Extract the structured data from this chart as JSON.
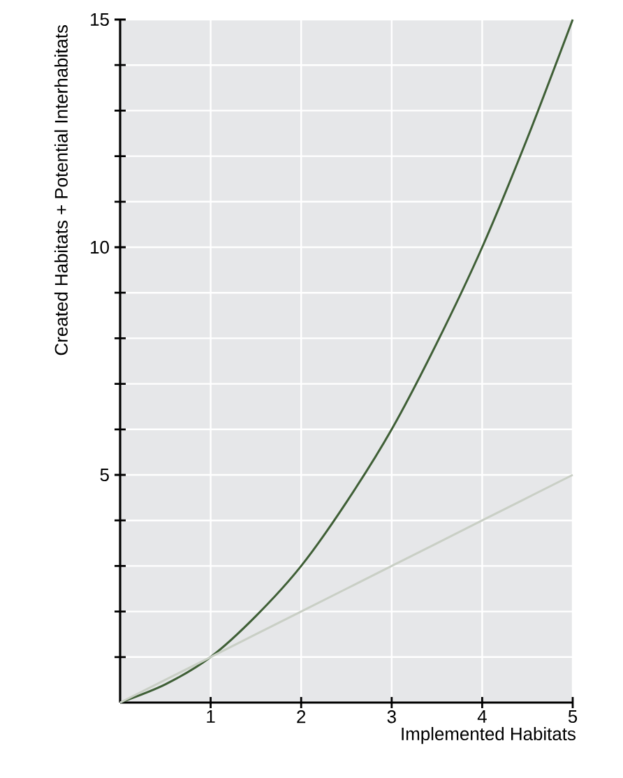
{
  "chart_data": {
    "type": "line",
    "xlabel": "Implemented Habitats",
    "ylabel": "Created Habitats + Potential Interhabitats",
    "series": [
      {
        "color": "#3f5f36",
        "x": [
          0,
          0.5,
          1,
          1.5,
          2,
          2.5,
          3,
          3.5,
          4,
          4.5,
          5
        ],
        "values": [
          0,
          0.4,
          1,
          1.9,
          3,
          4.4,
          6,
          7.9,
          10,
          12.4,
          15
        ]
      },
      {
        "color": "#c9cfc5",
        "x": [
          0,
          1,
          2,
          3,
          4,
          5
        ],
        "values": [
          0,
          1,
          2,
          3,
          4,
          5
        ]
      }
    ],
    "xlim": [
      0,
      5
    ],
    "ylim": [
      0,
      15
    ],
    "xticks": [
      1,
      2,
      3,
      4,
      5
    ],
    "yticks": [
      {
        "value": 1,
        "label": null
      },
      {
        "value": 2,
        "label": null
      },
      {
        "value": 3,
        "label": null
      },
      {
        "value": 4,
        "label": null
      },
      5,
      {
        "value": 6,
        "label": null
      },
      {
        "value": 7,
        "label": null
      },
      {
        "value": 8,
        "label": null
      },
      {
        "value": 9,
        "label": null
      },
      10,
      {
        "value": 11,
        "label": null
      },
      {
        "value": 12,
        "label": null
      },
      {
        "value": 13,
        "label": null
      },
      {
        "value": 14,
        "label": null
      },
      15
    ],
    "grid": true,
    "marker": "none",
    "line_style": "solid"
  }
}
